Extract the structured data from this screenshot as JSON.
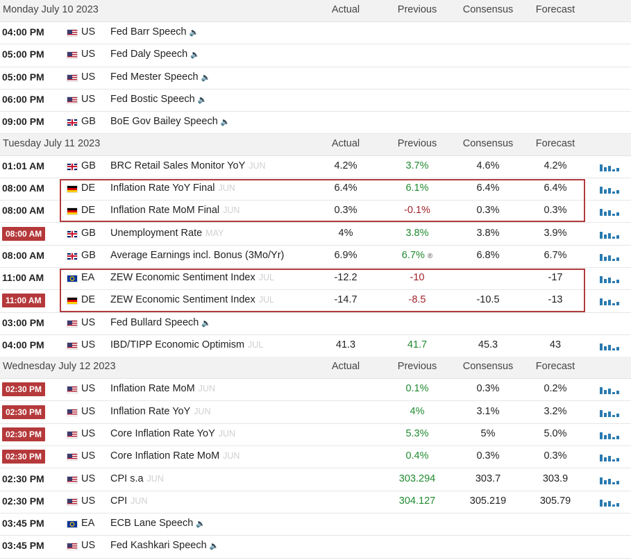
{
  "days": [
    {
      "date": "Monday July 10 2023",
      "columns": [
        "Actual",
        "Previous",
        "Consensus",
        "Forecast"
      ],
      "rows": [
        {
          "time": "04:00 PM",
          "country": "US",
          "event": "Fed Barr Speech",
          "speech": true
        },
        {
          "time": "05:00 PM",
          "country": "US",
          "event": "Fed Daly Speech",
          "speech": true
        },
        {
          "time": "05:00 PM",
          "country": "US",
          "event": "Fed Mester Speech",
          "speech": true
        },
        {
          "time": "06:00 PM",
          "country": "US",
          "event": "Fed Bostic Speech",
          "speech": true
        },
        {
          "time": "09:00 PM",
          "country": "GB",
          "event": "BoE Gov Bailey Speech",
          "speech": true
        }
      ]
    },
    {
      "date": "Tuesday July 11 2023",
      "columns": [
        "Actual",
        "Previous",
        "Consensus",
        "Forecast"
      ],
      "rows": [
        {
          "time": "01:01 AM",
          "country": "GB",
          "event": "BRC Retail Sales Monitor YoY",
          "period": "JUN",
          "actual": "4.2%",
          "previous": "3.7%",
          "previous_color": "green",
          "consensus": "4.6%",
          "forecast": "4.2%",
          "chart_icon": true
        },
        {
          "time": "08:00 AM",
          "country": "DE",
          "event": "Inflation Rate YoY Final",
          "period": "JUN",
          "actual": "6.4%",
          "previous": "6.1%",
          "previous_color": "green",
          "consensus": "6.4%",
          "forecast": "6.4%",
          "chart_icon": true,
          "boxed": true
        },
        {
          "time": "08:00 AM",
          "country": "DE",
          "event": "Inflation Rate MoM Final",
          "period": "JUN",
          "actual": "0.3%",
          "previous": "-0.1%",
          "previous_color": "red",
          "consensus": "0.3%",
          "forecast": "0.3%",
          "chart_icon": true,
          "boxed": true
        },
        {
          "time": "08:00 AM",
          "highlight": true,
          "country": "GB",
          "event": "Unemployment Rate",
          "period": "MAY",
          "actual": "4%",
          "previous": "3.8%",
          "previous_color": "green",
          "consensus": "3.8%",
          "forecast": "3.9%",
          "chart_icon": true
        },
        {
          "time": "08:00 AM",
          "country": "GB",
          "event": "Average Earnings incl. Bonus (3Mo/Yr)",
          "actual": "6.9%",
          "previous": "6.7%",
          "previous_color": "green",
          "previous_mark": "®",
          "consensus": "6.8%",
          "forecast": "6.7%",
          "chart_icon": true
        },
        {
          "time": "11:00 AM",
          "country": "EA",
          "event": "ZEW Economic Sentiment Index",
          "period": "JUL",
          "actual": "-12.2",
          "previous": "-10",
          "previous_color": "red",
          "forecast": "-17",
          "chart_icon": true,
          "boxed": true
        },
        {
          "time": "11:00 AM",
          "highlight": true,
          "country": "DE",
          "event": "ZEW Economic Sentiment Index",
          "period": "JUL",
          "actual": "-14.7",
          "previous": "-8.5",
          "previous_color": "red",
          "consensus": "-10.5",
          "forecast": "-13",
          "chart_icon": true,
          "boxed": true
        },
        {
          "time": "03:00 PM",
          "country": "US",
          "event": "Fed Bullard Speech",
          "speech": true
        },
        {
          "time": "04:00 PM",
          "country": "US",
          "event": "IBD/TIPP Economic Optimism",
          "period": "JUL",
          "actual": "41.3",
          "previous": "41.7",
          "previous_color": "green",
          "consensus": "45.3",
          "forecast": "43",
          "chart_icon": true
        }
      ]
    },
    {
      "date": "Wednesday July 12 2023",
      "columns": [
        "Actual",
        "Previous",
        "Consensus",
        "Forecast"
      ],
      "rows": [
        {
          "time": "02:30 PM",
          "highlight": true,
          "country": "US",
          "event": "Inflation Rate MoM",
          "period": "JUN",
          "previous": "0.1%",
          "previous_color": "green",
          "consensus": "0.3%",
          "forecast": "0.2%",
          "chart_icon": true
        },
        {
          "time": "02:30 PM",
          "highlight": true,
          "country": "US",
          "event": "Inflation Rate YoY",
          "period": "JUN",
          "previous": "4%",
          "previous_color": "green",
          "consensus": "3.1%",
          "forecast": "3.2%",
          "chart_icon": true
        },
        {
          "time": "02:30 PM",
          "highlight": true,
          "country": "US",
          "event": "Core Inflation Rate YoY",
          "period": "JUN",
          "previous": "5.3%",
          "previous_color": "green",
          "consensus": "5%",
          "forecast": "5.0%",
          "chart_icon": true
        },
        {
          "time": "02:30 PM",
          "highlight": true,
          "country": "US",
          "event": "Core Inflation Rate MoM",
          "period": "JUN",
          "previous": "0.4%",
          "previous_color": "green",
          "consensus": "0.3%",
          "forecast": "0.3%",
          "chart_icon": true
        },
        {
          "time": "02:30 PM",
          "country": "US",
          "event": "CPI s.a",
          "period": "JUN",
          "previous": "303.294",
          "previous_color": "green",
          "consensus": "303.7",
          "forecast": "303.9",
          "chart_icon": true
        },
        {
          "time": "02:30 PM",
          "country": "US",
          "event": "CPI",
          "period": "JUN",
          "previous": "304.127",
          "previous_color": "green",
          "consensus": "305.219",
          "forecast": "305.79",
          "chart_icon": true
        },
        {
          "time": "03:45 PM",
          "country": "EA",
          "event": "ECB Lane Speech",
          "speech": true
        },
        {
          "time": "03:45 PM",
          "country": "US",
          "event": "Fed Kashkari Speech",
          "speech": true
        }
      ]
    }
  ]
}
